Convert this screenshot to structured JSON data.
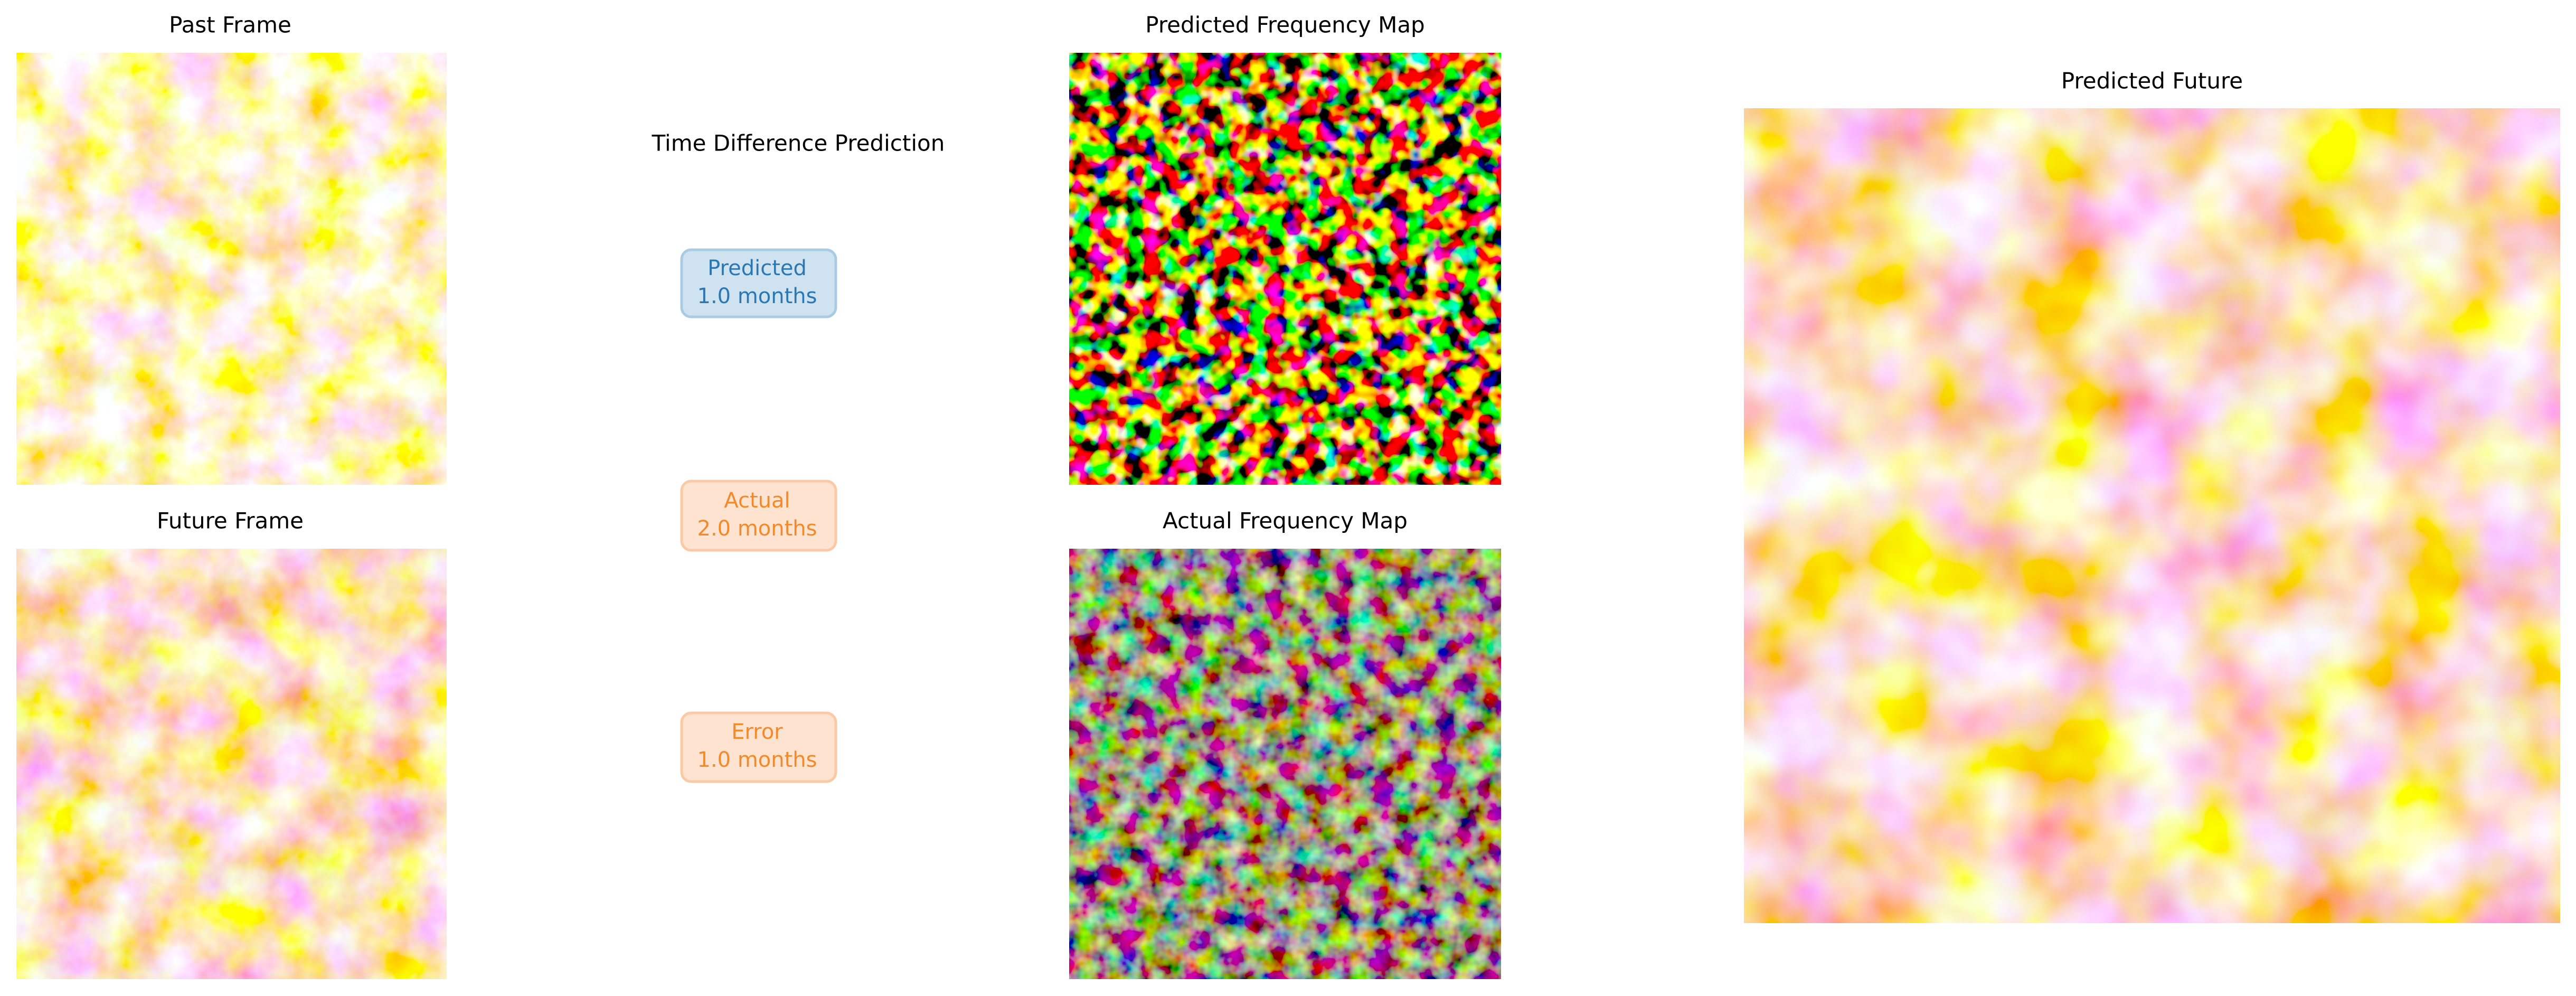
{
  "panels": [
    {
      "title": "Past Frame"
    },
    {
      "title": "Future Frame"
    },
    {
      "title": "Predicted Frequency Map"
    },
    {
      "title": "Actual Frequency Map"
    },
    {
      "title": "Predicted Future"
    }
  ],
  "time_difference": {
    "title": "Time Difference Prediction",
    "boxes": [
      {
        "label": "Predicted",
        "value": "1.0 months"
      },
      {
        "label": "Actual",
        "value": "2.0 months"
      },
      {
        "label": "Error",
        "value": "1.0 months"
      }
    ]
  }
}
